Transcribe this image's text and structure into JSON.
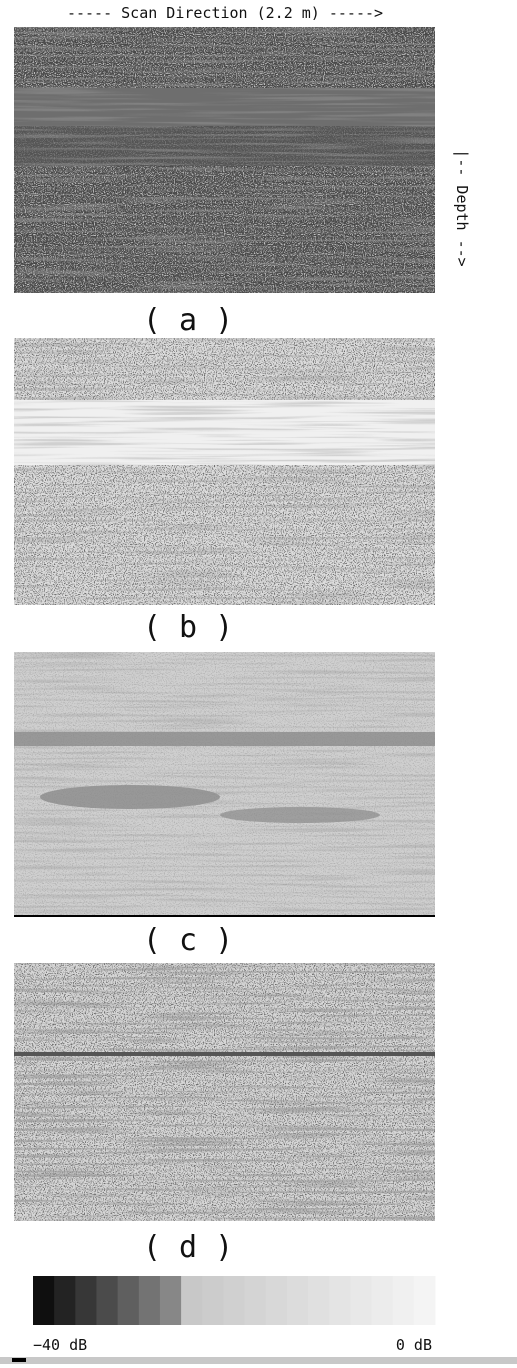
{
  "header": {
    "scan_direction": "----- Scan Direction (2.2 m) ----->",
    "depth": "|-- Depth -->"
  },
  "panels": [
    {
      "label": "( a )"
    },
    {
      "label": "( b )"
    },
    {
      "label": "( c )"
    },
    {
      "label": "( d )"
    }
  ],
  "colorbar": {
    "min_label": "−40 dB",
    "max_label": "0 dB"
  }
}
